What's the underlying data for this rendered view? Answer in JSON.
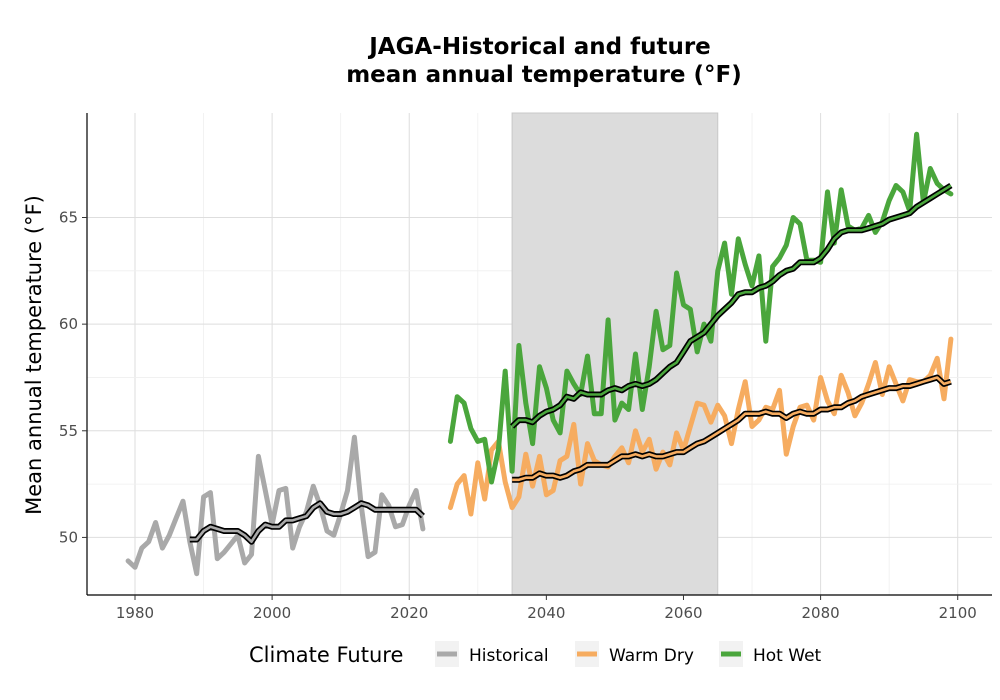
{
  "chart_data": {
    "type": "line",
    "title_line1": "JAGA-Historical and future",
    "title_line2": "mean annual temperature (°F)",
    "xlabel": "",
    "ylabel": "Mean annual temperature (°F)",
    "xlim": [
      1973,
      2105
    ],
    "ylim": [
      47.3,
      69.9
    ],
    "xticks": [
      1980,
      2000,
      2020,
      2040,
      2060,
      2080,
      2100
    ],
    "yticks": [
      50,
      55,
      60,
      65
    ],
    "grid": true,
    "shaded_period": [
      2035,
      2065
    ],
    "legend": {
      "title": "Climate Future",
      "position": "bottom"
    },
    "colors": {
      "Historical": "#a9a9a9",
      "Warm Dry": "#f6ac60",
      "Hot Wet": "#4aa63c",
      "smooth": "#000000",
      "shade": "#dcdcdc"
    },
    "series": [
      {
        "name": "Historical",
        "x": [
          1979,
          1980,
          1981,
          1982,
          1983,
          1984,
          1985,
          1986,
          1987,
          1988,
          1989,
          1990,
          1991,
          1992,
          1993,
          1994,
          1995,
          1996,
          1997,
          1998,
          1999,
          2000,
          2001,
          2002,
          2003,
          2004,
          2005,
          2006,
          2007,
          2008,
          2009,
          2010,
          2011,
          2012,
          2013,
          2014,
          2015,
          2016,
          2017,
          2018,
          2019,
          2020,
          2021,
          2022
        ],
        "y": [
          48.9,
          48.6,
          49.5,
          49.8,
          50.7,
          49.5,
          50.1,
          50.9,
          51.7,
          49.8,
          48.3,
          51.9,
          52.1,
          49.0,
          49.3,
          49.7,
          50.1,
          48.8,
          49.2,
          53.8,
          52.2,
          50.6,
          52.2,
          52.3,
          49.5,
          50.5,
          51.2,
          52.4,
          51.5,
          50.3,
          50.1,
          51.1,
          52.2,
          54.7,
          51.5,
          49.1,
          49.3,
          52.0,
          51.5,
          50.5,
          50.6,
          51.5,
          52.2,
          50.4
        ]
      },
      {
        "name": "Historical smooth",
        "x": [
          1988,
          1989,
          1990,
          1991,
          1992,
          1993,
          1994,
          1995,
          1996,
          1997,
          1998,
          1999,
          2000,
          2001,
          2002,
          2003,
          2004,
          2005,
          2006,
          2007,
          2008,
          2009,
          2010,
          2011,
          2012,
          2013,
          2014,
          2015,
          2016,
          2017,
          2018,
          2019,
          2020,
          2021,
          2022
        ],
        "y": [
          49.9,
          49.9,
          50.3,
          50.5,
          50.4,
          50.3,
          50.3,
          50.3,
          50.1,
          49.8,
          50.3,
          50.6,
          50.5,
          50.5,
          50.8,
          50.8,
          50.9,
          51.0,
          51.4,
          51.6,
          51.2,
          51.1,
          51.1,
          51.2,
          51.4,
          51.6,
          51.5,
          51.3,
          51.3,
          51.3,
          51.3,
          51.3,
          51.3,
          51.3,
          51.0
        ]
      },
      {
        "name": "Warm Dry",
        "x": [
          2026,
          2027,
          2028,
          2029,
          2030,
          2031,
          2032,
          2033,
          2034,
          2035,
          2036,
          2037,
          2038,
          2039,
          2040,
          2041,
          2042,
          2043,
          2044,
          2045,
          2046,
          2047,
          2048,
          2049,
          2050,
          2051,
          2052,
          2053,
          2054,
          2055,
          2056,
          2057,
          2058,
          2059,
          2060,
          2061,
          2062,
          2063,
          2064,
          2065,
          2066,
          2067,
          2068,
          2069,
          2070,
          2071,
          2072,
          2073,
          2074,
          2075,
          2076,
          2077,
          2078,
          2079,
          2080,
          2081,
          2082,
          2083,
          2084,
          2085,
          2086,
          2087,
          2088,
          2089,
          2090,
          2091,
          2092,
          2093,
          2094,
          2095,
          2096,
          2097,
          2098,
          2099
        ],
        "y": [
          51.4,
          52.5,
          52.9,
          51.1,
          53.5,
          51.8,
          54.1,
          54.5,
          52.6,
          51.4,
          51.9,
          53.9,
          52.4,
          53.8,
          52.0,
          52.2,
          53.6,
          53.8,
          55.3,
          52.5,
          54.4,
          53.6,
          53.4,
          53.3,
          53.8,
          54.2,
          53.5,
          55.0,
          54.0,
          54.6,
          53.2,
          54.0,
          53.4,
          54.9,
          54.1,
          55.2,
          56.3,
          56.2,
          55.4,
          56.2,
          55.7,
          54.4,
          56.0,
          57.3,
          55.2,
          55.5,
          56.1,
          56.0,
          56.9,
          53.9,
          55.2,
          56.1,
          56.2,
          55.5,
          57.5,
          56.4,
          55.8,
          57.6,
          56.8,
          55.7,
          56.3,
          57.2,
          58.2,
          56.7,
          58.0,
          57.2,
          56.4,
          57.4,
          57.3,
          57.3,
          57.6,
          58.4,
          56.5,
          59.3
        ]
      },
      {
        "name": "Warm Dry smooth",
        "x": [
          2035,
          2036,
          2037,
          2038,
          2039,
          2040,
          2041,
          2042,
          2043,
          2044,
          2045,
          2046,
          2047,
          2048,
          2049,
          2050,
          2051,
          2052,
          2053,
          2054,
          2055,
          2056,
          2057,
          2058,
          2059,
          2060,
          2061,
          2062,
          2063,
          2064,
          2065,
          2066,
          2067,
          2068,
          2069,
          2070,
          2071,
          2072,
          2073,
          2074,
          2075,
          2076,
          2077,
          2078,
          2079,
          2080,
          2081,
          2082,
          2083,
          2084,
          2085,
          2086,
          2087,
          2088,
          2089,
          2090,
          2091,
          2092,
          2093,
          2094,
          2095,
          2096,
          2097,
          2098,
          2099
        ],
        "y": [
          52.7,
          52.7,
          52.8,
          52.8,
          53.0,
          52.9,
          52.9,
          52.8,
          52.9,
          53.1,
          53.2,
          53.4,
          53.4,
          53.4,
          53.4,
          53.6,
          53.8,
          53.8,
          53.9,
          53.8,
          53.9,
          53.8,
          53.8,
          53.9,
          54.0,
          54.0,
          54.2,
          54.4,
          54.5,
          54.7,
          54.9,
          55.1,
          55.3,
          55.5,
          55.8,
          55.8,
          55.8,
          55.9,
          55.8,
          55.8,
          55.6,
          55.8,
          55.9,
          55.8,
          55.8,
          56.0,
          56.0,
          56.1,
          56.1,
          56.3,
          56.4,
          56.6,
          56.7,
          56.8,
          56.9,
          57.0,
          57.0,
          57.1,
          57.1,
          57.2,
          57.3,
          57.4,
          57.5,
          57.2,
          57.3
        ]
      },
      {
        "name": "Hot Wet",
        "x": [
          2026,
          2027,
          2028,
          2029,
          2030,
          2031,
          2032,
          2033,
          2034,
          2035,
          2036,
          2037,
          2038,
          2039,
          2040,
          2041,
          2042,
          2043,
          2044,
          2045,
          2046,
          2047,
          2048,
          2049,
          2050,
          2051,
          2052,
          2053,
          2054,
          2055,
          2056,
          2057,
          2058,
          2059,
          2060,
          2061,
          2062,
          2063,
          2064,
          2065,
          2066,
          2067,
          2068,
          2069,
          2070,
          2071,
          2072,
          2073,
          2074,
          2075,
          2076,
          2077,
          2078,
          2079,
          2080,
          2081,
          2082,
          2083,
          2084,
          2085,
          2086,
          2087,
          2088,
          2089,
          2090,
          2091,
          2092,
          2093,
          2094,
          2095,
          2096,
          2097,
          2098,
          2099
        ],
        "y": [
          54.5,
          56.6,
          56.3,
          55.1,
          54.5,
          54.6,
          52.6,
          54.1,
          57.8,
          53.1,
          59.0,
          56.3,
          54.4,
          58.0,
          57.0,
          55.5,
          54.9,
          57.8,
          57.2,
          56.7,
          58.5,
          55.8,
          55.8,
          60.2,
          55.5,
          56.3,
          56.0,
          58.6,
          56.0,
          58.0,
          60.6,
          58.8,
          59.0,
          62.4,
          60.9,
          60.7,
          58.7,
          60.0,
          59.2,
          62.5,
          63.8,
          61.4,
          64.0,
          62.8,
          61.8,
          63.2,
          59.2,
          62.7,
          63.1,
          63.7,
          65.0,
          64.7,
          63.0,
          63.0,
          62.9,
          66.2,
          63.8,
          66.3,
          64.6,
          64.4,
          64.5,
          65.1,
          64.3,
          64.8,
          65.8,
          66.5,
          66.2,
          65.3,
          68.9,
          65.7,
          67.3,
          66.6,
          66.3,
          66.1
        ]
      },
      {
        "name": "Hot Wet smooth",
        "x": [
          2035,
          2036,
          2037,
          2038,
          2039,
          2040,
          2041,
          2042,
          2043,
          2044,
          2045,
          2046,
          2047,
          2048,
          2049,
          2050,
          2051,
          2052,
          2053,
          2054,
          2055,
          2056,
          2057,
          2058,
          2059,
          2060,
          2061,
          2062,
          2063,
          2064,
          2065,
          2066,
          2067,
          2068,
          2069,
          2070,
          2071,
          2072,
          2073,
          2074,
          2075,
          2076,
          2077,
          2078,
          2079,
          2080,
          2081,
          2082,
          2083,
          2084,
          2085,
          2086,
          2087,
          2088,
          2089,
          2090,
          2091,
          2092,
          2093,
          2094,
          2095,
          2096,
          2097,
          2098,
          2099
        ],
        "y": [
          55.2,
          55.5,
          55.5,
          55.4,
          55.7,
          55.9,
          56.0,
          56.2,
          56.6,
          56.5,
          56.8,
          56.7,
          56.7,
          56.7,
          56.9,
          57.0,
          56.9,
          57.1,
          57.2,
          57.1,
          57.2,
          57.4,
          57.7,
          58.0,
          58.2,
          58.7,
          59.2,
          59.4,
          59.6,
          60.0,
          60.4,
          60.7,
          61.0,
          61.4,
          61.5,
          61.5,
          61.7,
          61.8,
          62.0,
          62.3,
          62.5,
          62.6,
          62.9,
          62.9,
          62.9,
          63.1,
          63.5,
          64.0,
          64.3,
          64.4,
          64.4,
          64.4,
          64.5,
          64.6,
          64.7,
          64.9,
          65.0,
          65.1,
          65.2,
          65.5,
          65.7,
          65.9,
          66.1,
          66.3,
          66.5
        ]
      }
    ],
    "legend_items": [
      {
        "label": "Historical",
        "color": "#a9a9a9"
      },
      {
        "label": "Warm Dry",
        "color": "#f6ac60"
      },
      {
        "label": "Hot Wet",
        "color": "#4aa63c"
      }
    ]
  }
}
